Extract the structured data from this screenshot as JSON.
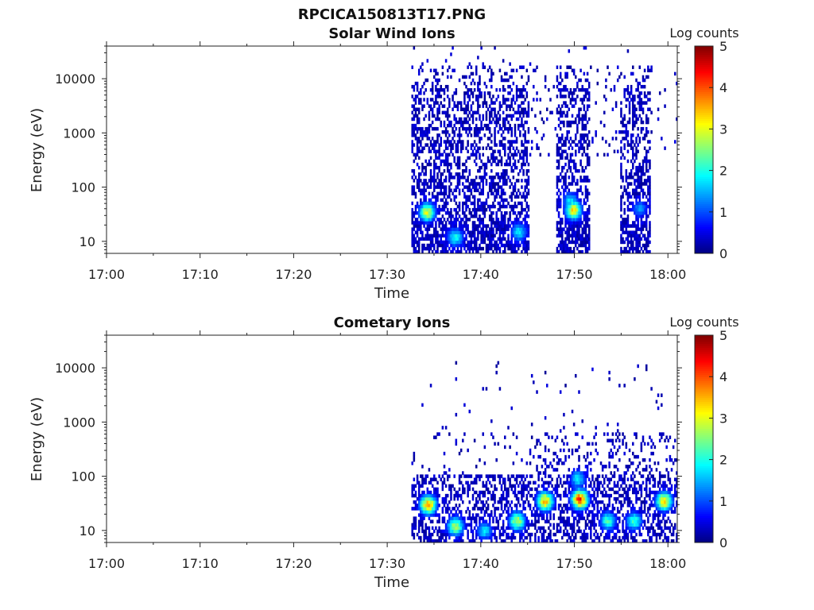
{
  "figure_title": "RPCICA150813T17.PNG",
  "chart_data": [
    {
      "type": "heatmap",
      "title": "Solar Wind Ions",
      "xlabel": "Time",
      "ylabel": "Energy (eV)",
      "x_ticks": [
        "17:00",
        "17:10",
        "17:20",
        "17:30",
        "17:40",
        "17:50",
        "18:00"
      ],
      "x_range_min": [
        0,
        61
      ],
      "y_scale": "log",
      "y_range": [
        6,
        40000
      ],
      "y_ticks": [
        10,
        100,
        1000,
        10000
      ],
      "colorbar": {
        "label": "Log counts",
        "min": 0,
        "max": 5,
        "ticks": [
          0,
          1,
          2,
          3,
          4,
          5
        ]
      },
      "activity_intervals_min": [
        [
          32.5,
          45
        ],
        [
          48,
          51.5
        ],
        [
          54.8,
          58
        ]
      ],
      "hotspots": [
        {
          "t_min": 34.2,
          "energy_eV": 35,
          "log_counts": 3.0
        },
        {
          "t_min": 37.2,
          "energy_eV": 12,
          "log_counts": 2.0
        },
        {
          "t_min": 44,
          "energy_eV": 15,
          "log_counts": 1.8
        },
        {
          "t_min": 49.8,
          "energy_eV": 38,
          "log_counts": 3.2
        },
        {
          "t_min": 49.5,
          "energy_eV": 55,
          "log_counts": 1.8
        },
        {
          "t_min": 56.9,
          "energy_eV": 40,
          "log_counts": 1.4
        }
      ]
    },
    {
      "type": "heatmap",
      "title": "Cometary Ions",
      "xlabel": "Time",
      "ylabel": "Energy (eV)",
      "x_ticks": [
        "17:00",
        "17:10",
        "17:20",
        "17:30",
        "17:40",
        "17:50",
        "18:00"
      ],
      "x_range_min": [
        0,
        61
      ],
      "y_scale": "log",
      "y_range": [
        6,
        40000
      ],
      "y_ticks": [
        10,
        100,
        1000,
        10000
      ],
      "colorbar": {
        "label": "Log counts",
        "min": 0,
        "max": 5,
        "ticks": [
          0,
          1,
          2,
          3,
          4,
          5
        ]
      },
      "activity_intervals_min": [
        [
          32.5,
          61
        ]
      ],
      "hotspots": [
        {
          "t_min": 34.3,
          "energy_eV": 30,
          "log_counts": 3.6
        },
        {
          "t_min": 37.2,
          "energy_eV": 12,
          "log_counts": 2.8
        },
        {
          "t_min": 40.3,
          "energy_eV": 10,
          "log_counts": 1.8
        },
        {
          "t_min": 43.8,
          "energy_eV": 15,
          "log_counts": 2.8
        },
        {
          "t_min": 46.8,
          "energy_eV": 35,
          "log_counts": 3.5
        },
        {
          "t_min": 50.5,
          "energy_eV": 38,
          "log_counts": 4.2
        },
        {
          "t_min": 50.3,
          "energy_eV": 90,
          "log_counts": 1.8
        },
        {
          "t_min": 53.5,
          "energy_eV": 15,
          "log_counts": 2.2
        },
        {
          "t_min": 56.3,
          "energy_eV": 15,
          "log_counts": 2.2
        },
        {
          "t_min": 59.5,
          "energy_eV": 35,
          "log_counts": 3.3
        }
      ]
    }
  ]
}
